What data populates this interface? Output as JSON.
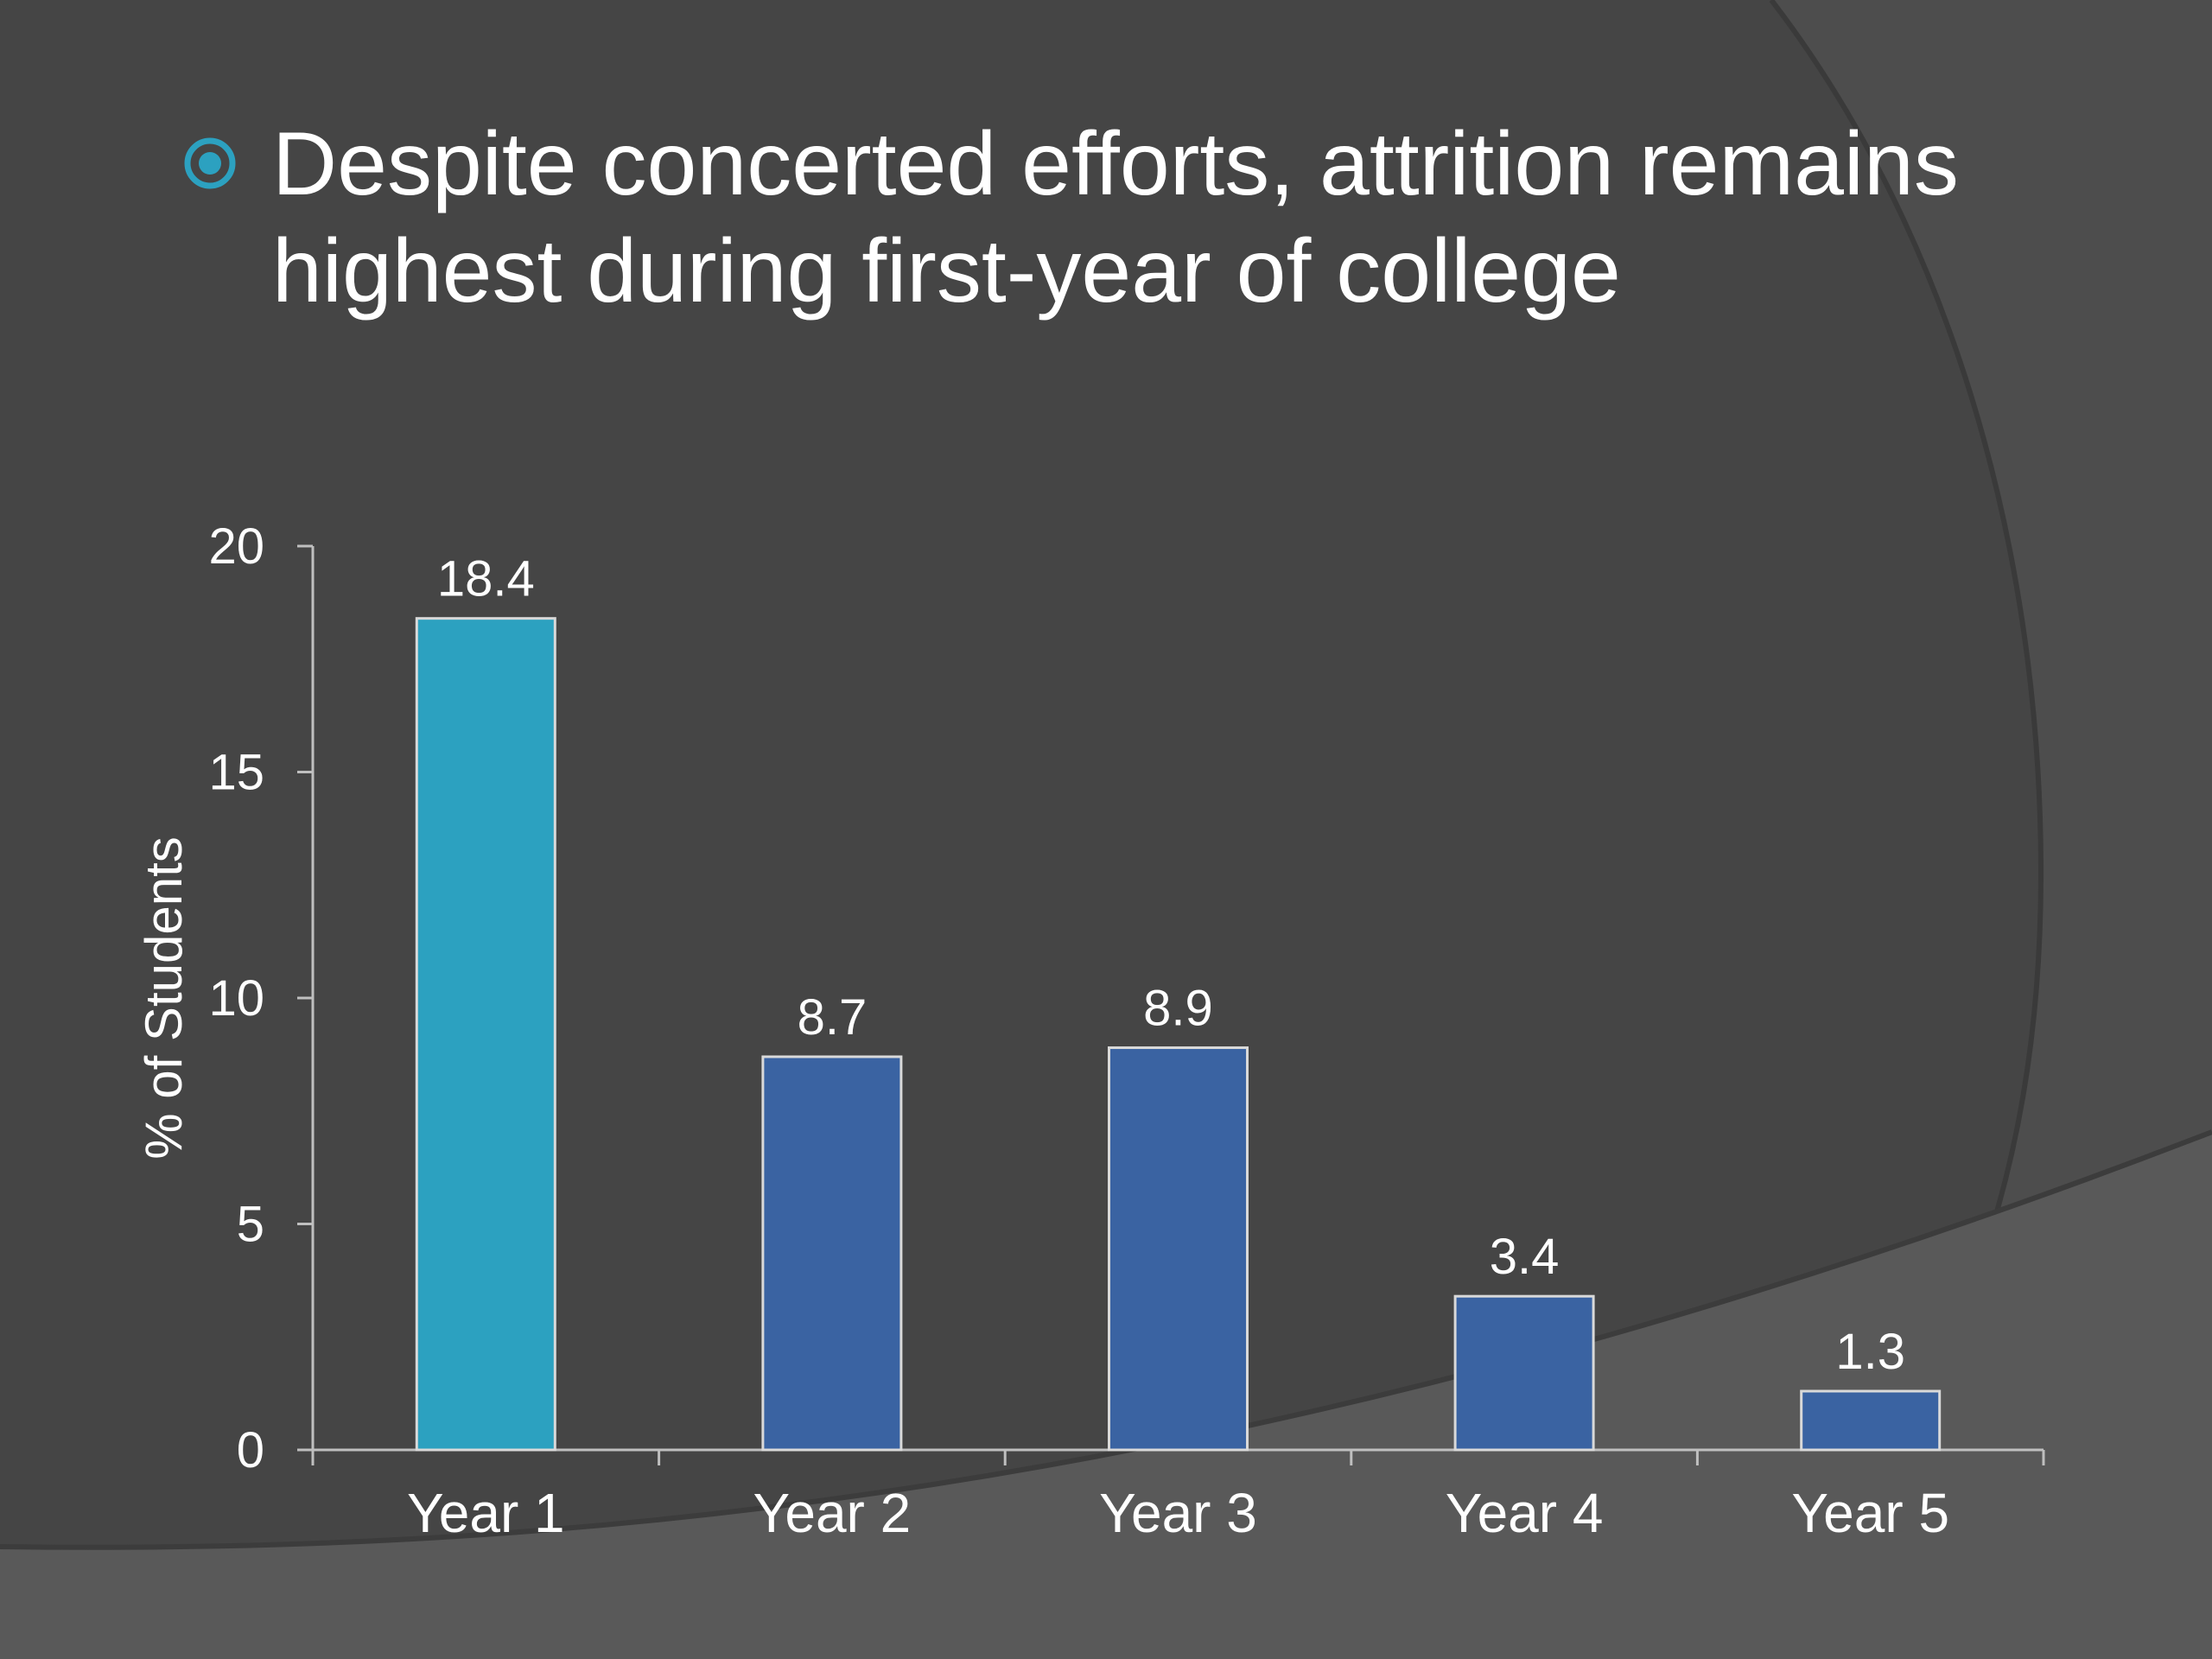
{
  "slide": {
    "title_lines": [
      "Despite concerted efforts, attrition remains",
      "highest during first-year of college"
    ],
    "bullet_icon": "circle-target-icon",
    "colors": {
      "background": "#454545",
      "accent": "#2ca1c0",
      "bar": "#3a63a2",
      "text": "#ffffff"
    }
  },
  "chart_data": {
    "type": "bar",
    "categories": [
      "Year 1",
      "Year 2",
      "Year 3",
      "Year 4",
      "Year 5"
    ],
    "values": [
      18.4,
      8.7,
      8.9,
      3.4,
      1.3
    ],
    "value_labels": [
      "18.4",
      "8.7",
      "8.9",
      "3.4",
      "1.3"
    ],
    "yticks": [
      0,
      5,
      10,
      15,
      20
    ],
    "ylim": [
      0,
      20
    ],
    "ylabel": "% of Students",
    "xlabel": "",
    "title": "",
    "grid": false,
    "legend": "none",
    "bar_colors": [
      "#2ca1c0",
      "#3a63a2",
      "#3a63a2",
      "#3a63a2",
      "#3a63a2"
    ]
  }
}
